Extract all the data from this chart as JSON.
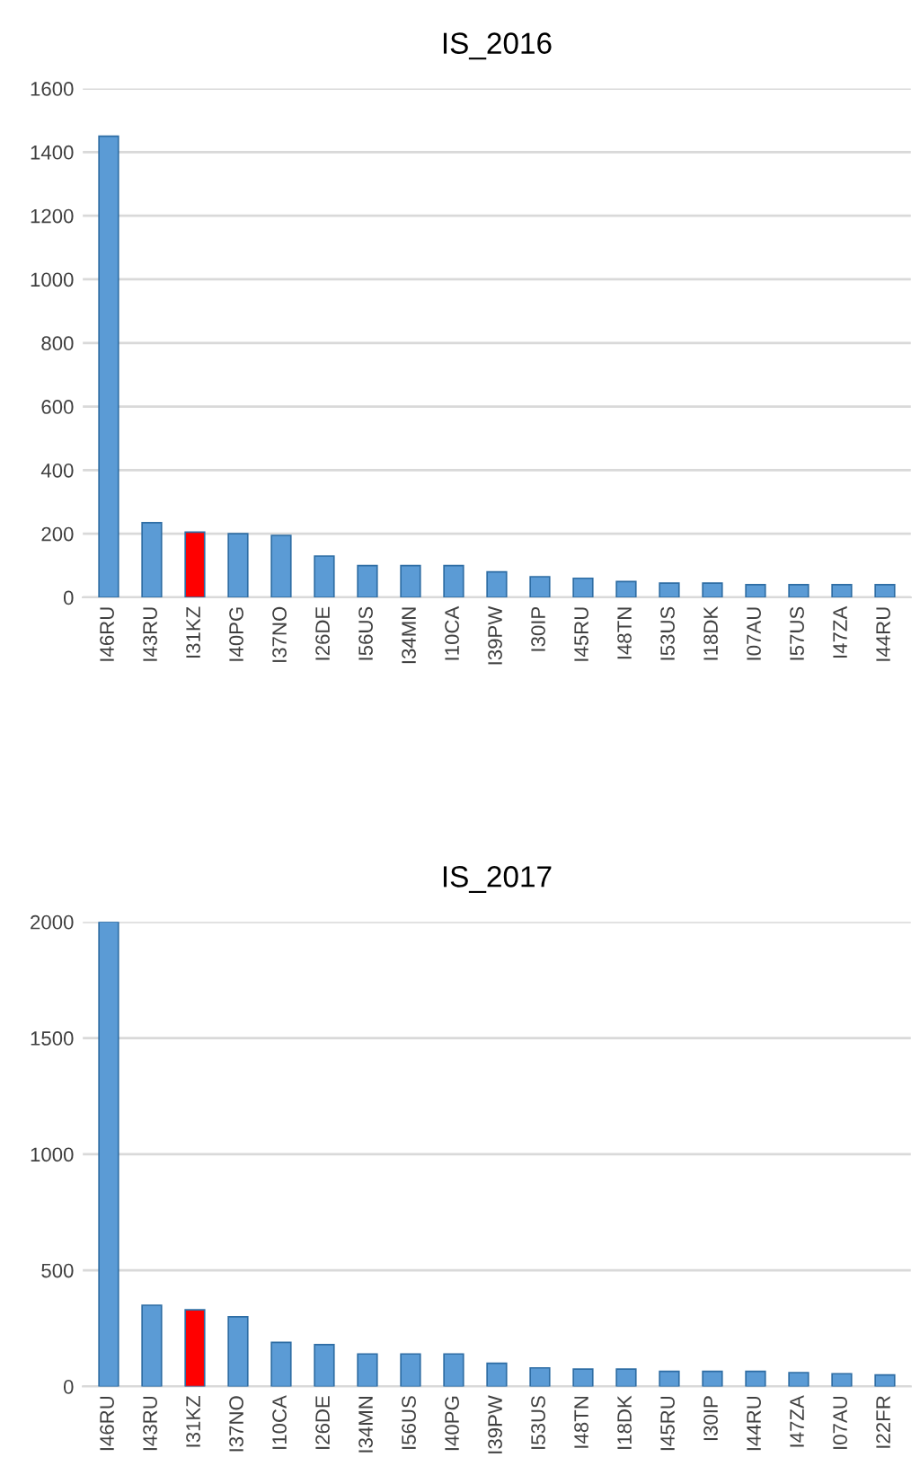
{
  "chart_data": [
    {
      "type": "bar",
      "title": "IS_2016",
      "categories": [
        "I46RU",
        "I43RU",
        "I31KZ",
        "I40PG",
        "I37NO",
        "I26DE",
        "I56US",
        "I34MN",
        "I10CA",
        "I39PW",
        "I30IP",
        "I45RU",
        "I48TN",
        "I53US",
        "I18DK",
        "I07AU",
        "I57US",
        "I47ZA",
        "I44RU"
      ],
      "values": [
        1450,
        235,
        205,
        200,
        195,
        130,
        100,
        100,
        100,
        80,
        65,
        60,
        50,
        45,
        45,
        40,
        40,
        40,
        40
      ],
      "colors": [
        "#5b9bd5",
        "#5b9bd5",
        "#ff0000",
        "#5b9bd5",
        "#5b9bd5",
        "#5b9bd5",
        "#5b9bd5",
        "#5b9bd5",
        "#5b9bd5",
        "#5b9bd5",
        "#5b9bd5",
        "#5b9bd5",
        "#5b9bd5",
        "#5b9bd5",
        "#5b9bd5",
        "#5b9bd5",
        "#5b9bd5",
        "#5b9bd5",
        "#5b9bd5"
      ],
      "ylim": [
        0,
        1600
      ],
      "yticks": [
        0,
        200,
        400,
        600,
        800,
        1000,
        1200,
        1400,
        1600
      ],
      "grid": "y"
    },
    {
      "type": "bar",
      "title": "IS_2017",
      "categories": [
        "I46RU",
        "I43RU",
        "I31KZ",
        "I37NO",
        "I10CA",
        "I26DE",
        "I34MN",
        "I56US",
        "I40PG",
        "I39PW",
        "I53US",
        "I48TN",
        "I18DK",
        "I45RU",
        "I30IP",
        "I44RU",
        "I47ZA",
        "I07AU",
        "I22FR"
      ],
      "values": [
        2000,
        350,
        330,
        300,
        190,
        180,
        140,
        140,
        140,
        100,
        80,
        75,
        75,
        65,
        65,
        65,
        60,
        55,
        50
      ],
      "colors": [
        "#5b9bd5",
        "#5b9bd5",
        "#ff0000",
        "#5b9bd5",
        "#5b9bd5",
        "#5b9bd5",
        "#5b9bd5",
        "#5b9bd5",
        "#5b9bd5",
        "#5b9bd5",
        "#5b9bd5",
        "#5b9bd5",
        "#5b9bd5",
        "#5b9bd5",
        "#5b9bd5",
        "#5b9bd5",
        "#5b9bd5",
        "#5b9bd5",
        "#5b9bd5"
      ],
      "ylim": [
        0,
        2000
      ],
      "yticks": [
        0,
        500,
        1000,
        1500,
        2000
      ],
      "grid": "y"
    }
  ]
}
